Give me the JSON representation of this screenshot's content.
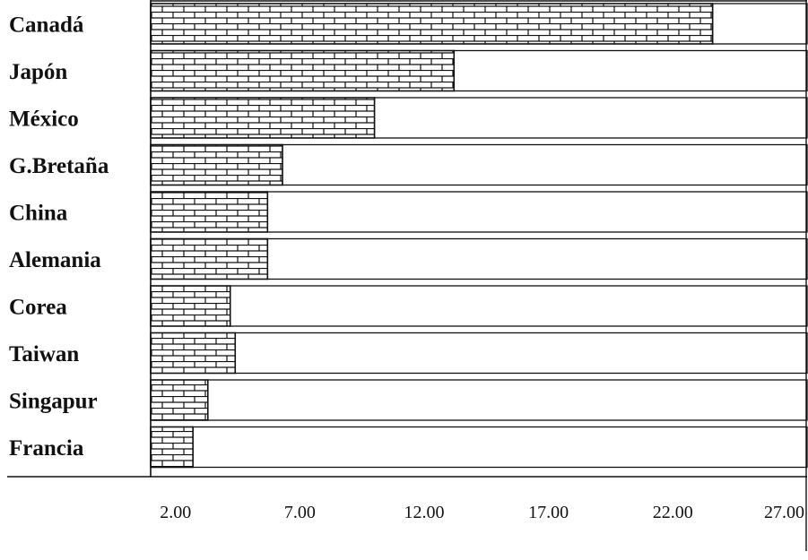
{
  "chart_data": {
    "type": "bar",
    "orientation": "horizontal",
    "categories": [
      "Canadá",
      "Japón",
      "México",
      "G.Bretaña",
      "China",
      "Alemania",
      "Corea",
      "Taiwan",
      "Singapur",
      "Francia"
    ],
    "values": [
      23.6,
      13.2,
      10.0,
      6.3,
      5.7,
      5.7,
      4.2,
      4.4,
      3.3,
      2.7
    ],
    "xlim": [
      1.0,
      27.4
    ],
    "xticks": [
      "2.00",
      "7.00",
      "12.00",
      "17.00",
      "22.00",
      "27.00"
    ],
    "title": "",
    "xlabel": "",
    "ylabel": "",
    "grid": false,
    "bar_fill": "brick",
    "colors": {
      "ink": "#111111",
      "background": "#ffffff"
    }
  }
}
